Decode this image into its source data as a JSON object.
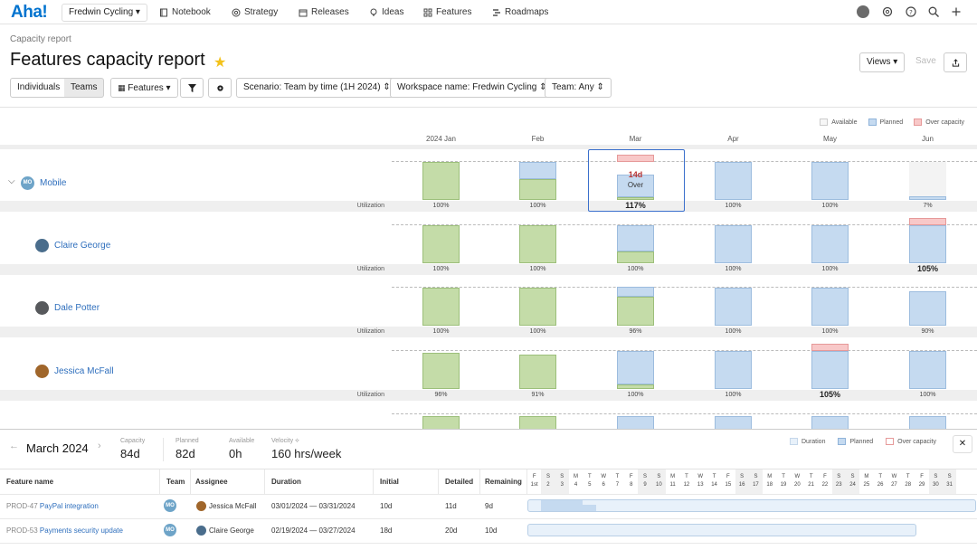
{
  "nav": {
    "logo": "Aha!",
    "workspace": "Fredwin Cycling",
    "items": [
      {
        "label": "Notebook",
        "icon": "notebook-icon"
      },
      {
        "label": "Strategy",
        "icon": "strategy-icon"
      },
      {
        "label": "Releases",
        "icon": "releases-icon"
      },
      {
        "label": "Ideas",
        "icon": "ideas-icon"
      },
      {
        "label": "Features",
        "icon": "features-icon"
      },
      {
        "label": "Roadmaps",
        "icon": "roadmaps-icon"
      }
    ]
  },
  "page": {
    "breadcrumb": "Capacity report",
    "title": "Features capacity report"
  },
  "toolbar": {
    "individuals": "Individuals",
    "teams": "Teams",
    "features": "Features",
    "scenario": "Scenario: Team by time (1H 2024)",
    "workspace": "Workspace name: Fredwin Cycling",
    "team": "Team: Any",
    "views": "Views",
    "save": "Save"
  },
  "legend": {
    "available": "Available",
    "planned": "Planned",
    "over": "Over capacity"
  },
  "colors": {
    "available": "#c4dca8",
    "planned": "#c5daf0",
    "over": "#f8c8c8",
    "link": "#2f6fbd"
  },
  "months": [
    "2024 Jan",
    "Feb",
    "Mar",
    "Apr",
    "May",
    "Jun"
  ],
  "utilization_label": "Utilization",
  "rows": [
    {
      "name": "Mobile",
      "initials": "MO",
      "util": [
        "100%",
        "100%",
        "117%",
        "100%",
        "100%",
        "7%"
      ],
      "planned": [
        0,
        0.45,
        0.6,
        1,
        1,
        0.1
      ],
      "available": [
        1,
        0.55,
        0.07,
        0,
        0,
        0
      ],
      "over": [
        0,
        0,
        0.2,
        0,
        0,
        0
      ]
    },
    {
      "name": "Claire George",
      "util": [
        "100%",
        "100%",
        "100%",
        "100%",
        "100%",
        "105%"
      ],
      "planned": [
        0,
        0,
        0.7,
        1,
        1,
        1
      ],
      "available": [
        1,
        1,
        0.3,
        0,
        0,
        0
      ],
      "over": [
        0,
        0,
        0,
        0,
        0,
        0.18
      ]
    },
    {
      "name": "Dale Potter",
      "util": [
        "100%",
        "100%",
        "96%",
        "100%",
        "100%",
        "90%"
      ],
      "planned": [
        0,
        0,
        0.25,
        1,
        1,
        0.9
      ],
      "available": [
        1,
        1,
        0.75,
        0,
        0,
        0
      ],
      "over": [
        0,
        0,
        0,
        0,
        0,
        0
      ]
    },
    {
      "name": "Jessica McFall",
      "util": [
        "96%",
        "91%",
        "100%",
        "100%",
        "105%",
        "100%"
      ],
      "planned": [
        0,
        0,
        0.88,
        1,
        1,
        1
      ],
      "available": [
        0.96,
        0.91,
        0.12,
        0,
        0,
        0
      ],
      "over": [
        0,
        0,
        0,
        0,
        0.18,
        0
      ]
    }
  ],
  "callout": {
    "value": "14d",
    "label": "Over"
  },
  "bottom": {
    "month": "March 2024",
    "stats": [
      {
        "label": "Capacity",
        "value": "84d"
      },
      {
        "label": "Planned",
        "value": "82d"
      },
      {
        "label": "Available",
        "value": "0h"
      },
      {
        "label": "Velocity",
        "value": "160 hrs/week"
      }
    ],
    "legend": {
      "duration": "Duration",
      "planned": "Planned",
      "over": "Over capacity"
    },
    "headers": [
      "Feature name",
      "Team",
      "Assignee",
      "Duration",
      "Initial",
      "Detailed",
      "Remaining"
    ],
    "days": [
      {
        "d": "F",
        "n": "1st"
      },
      {
        "d": "S",
        "n": "2"
      },
      {
        "d": "S",
        "n": "3"
      },
      {
        "d": "M",
        "n": "4"
      },
      {
        "d": "T",
        "n": "5"
      },
      {
        "d": "W",
        "n": "6"
      },
      {
        "d": "T",
        "n": "7"
      },
      {
        "d": "F",
        "n": "8"
      },
      {
        "d": "S",
        "n": "9"
      },
      {
        "d": "S",
        "n": "10"
      },
      {
        "d": "M",
        "n": "11"
      },
      {
        "d": "T",
        "n": "12"
      },
      {
        "d": "W",
        "n": "13"
      },
      {
        "d": "T",
        "n": "14"
      },
      {
        "d": "F",
        "n": "15"
      },
      {
        "d": "S",
        "n": "16"
      },
      {
        "d": "S",
        "n": "17"
      },
      {
        "d": "M",
        "n": "18"
      },
      {
        "d": "T",
        "n": "19"
      },
      {
        "d": "W",
        "n": "20"
      },
      {
        "d": "T",
        "n": "21"
      },
      {
        "d": "F",
        "n": "22"
      },
      {
        "d": "S",
        "n": "23"
      },
      {
        "d": "S",
        "n": "24"
      },
      {
        "d": "M",
        "n": "25"
      },
      {
        "d": "T",
        "n": "26"
      },
      {
        "d": "W",
        "n": "27"
      },
      {
        "d": "T",
        "n": "28"
      },
      {
        "d": "F",
        "n": "29"
      },
      {
        "d": "S",
        "n": "30"
      },
      {
        "d": "S",
        "n": "31"
      }
    ],
    "rows": [
      {
        "id": "PROD-47",
        "name": "PayPal integration",
        "team": "MO",
        "assignee": "Jessica McFall",
        "start": "03/01/2024",
        "end": "03/31/2024",
        "initial": "10d",
        "detailed": "11d",
        "remaining": "9d"
      },
      {
        "id": "PROD-53",
        "name": "Payments security update",
        "team": "MO",
        "assignee": "Claire George",
        "start": "02/19/2024",
        "end": "03/27/2024",
        "initial": "18d",
        "detailed": "20d",
        "remaining": "10d"
      }
    ]
  }
}
